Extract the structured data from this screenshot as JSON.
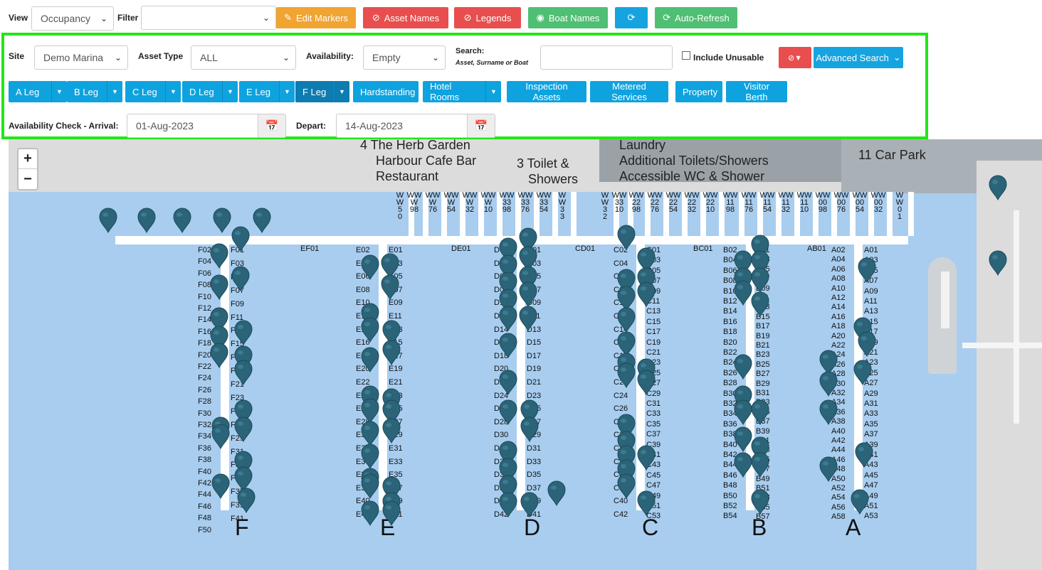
{
  "toolbar": {
    "view_label": "View",
    "view_value": "Occupancy",
    "filter_label": "Filter",
    "filter_value": "",
    "edit_markers": "Edit Markers",
    "asset_names": "Asset Names",
    "legends": "Legends",
    "boat_names": "Boat Names",
    "auto_refresh": "Auto-Refresh"
  },
  "search_panel": {
    "site_label": "Site",
    "site_value": "Demo Marina",
    "asset_type_label": "Asset Type",
    "asset_type_value": "ALL",
    "availability_label": "Availability:",
    "availability_value": "Empty",
    "search_label": "Search:",
    "search_sub": "Asset, Surname or Boat",
    "search_value": "",
    "include_unusable": "Include Unusable",
    "advanced_search": "Advanced Search",
    "legs": [
      {
        "label": "A Leg",
        "dd": true
      },
      {
        "label": "B Leg",
        "dd": true
      },
      {
        "label": "C Leg",
        "dd": true
      },
      {
        "label": "D Leg",
        "dd": true
      },
      {
        "label": "E Leg",
        "dd": true
      },
      {
        "label": "F Leg",
        "dd": true
      },
      {
        "label": "Hardstanding",
        "dd": false
      },
      {
        "label": "Hotel Rooms",
        "dd": true
      },
      {
        "label": "Inspection Assets",
        "dd": false
      },
      {
        "label": "Metered Services",
        "dd": false
      },
      {
        "label": "Property",
        "dd": false
      },
      {
        "label": "Visitor Berth",
        "dd": false
      }
    ],
    "arrival_label": "Availability Check - Arrival:",
    "arrival_value": "01-Aug-2023",
    "depart_label": "Depart:",
    "depart_value": "14-Aug-2023"
  },
  "map": {
    "zoom_in": "+",
    "zoom_out": "−",
    "places": [
      "4  The Herb Garden",
      "Harbour Cafe Bar",
      "Restaurant",
      "3 Toilet &",
      "Showers",
      "Laundry",
      "Additional Toilets/Showers",
      "Accessible WC & Shower",
      "11 Car Park"
    ],
    "leg_letters": [
      "F",
      "E",
      "D",
      "C",
      "B",
      "A"
    ],
    "cross_labels": [
      "EF01",
      "DE01",
      "CD01",
      "BC01",
      "AB01"
    ],
    "ww_labels": [
      "W\nW\n5\n0",
      "WW\nW\n98",
      "WW\nW\n76",
      "WW\nW\n54",
      "WW\nW\n32",
      "WW\nW\n10",
      "WW\n33\n98",
      "WW\n33\n76",
      "WW\n33\n54",
      "W\nW\n3\n3",
      "W\nW\n3\n2",
      "WW\n33\n10",
      "WW\n22\n98",
      "WW\n22\n76",
      "WW\n22\n54",
      "WW\n22\n32",
      "WW\n22\n10",
      "WW\n11\n98",
      "WW\n11\n76",
      "WW\n11\n54",
      "WW\n11\n32",
      "WW\n11\n10",
      "WW\n00\n98",
      "WW\n00\n76",
      "WW\n00\n54",
      "WW\n00\n32",
      "W\nW\n0\n1"
    ],
    "berths": {
      "F_left": [
        "F02",
        "F04",
        "F06",
        "F08",
        "F10",
        "F12",
        "F14",
        "F16",
        "F18",
        "F20",
        "F22",
        "F24",
        "F26",
        "F28",
        "F30",
        "F32",
        "F34",
        "F36",
        "F38",
        "F40",
        "F42",
        "F44",
        "F46",
        "F48",
        "F50"
      ],
      "F_right": [
        "F01",
        "F03",
        "F05",
        "F07",
        "F09",
        "F11",
        "F13",
        "F15",
        "F17",
        "F19",
        "F21",
        "F23",
        "F25",
        "F27",
        "F29",
        "F31",
        "F33",
        "F35",
        "F37",
        "F39",
        "F41"
      ],
      "E_left": [
        "E02",
        "E04",
        "E06",
        "E08",
        "E10",
        "E12",
        "E14",
        "E16",
        "E18",
        "E20",
        "E22",
        "E24",
        "E26",
        "E28",
        "E30",
        "E32",
        "E34",
        "E36",
        "E38",
        "E40",
        "E42"
      ],
      "E_right": [
        "E01",
        "E03",
        "E05",
        "E07",
        "E09",
        "E11",
        "E13",
        "E15",
        "E17",
        "E19",
        "E21",
        "E23",
        "E25",
        "E27",
        "E29",
        "E31",
        "E33",
        "E35",
        "E37",
        "E39",
        "E41"
      ],
      "D_left": [
        "D02",
        "D04",
        "D06",
        "D08",
        "D10",
        "D12",
        "D14",
        "D16",
        "D18",
        "D20",
        "D22",
        "D24",
        "D26",
        "D28",
        "D30",
        "D32",
        "D34",
        "D36",
        "D38",
        "D40",
        "D42"
      ],
      "D_right": [
        "D01",
        "D03",
        "D05",
        "D07",
        "D09",
        "D11",
        "D13",
        "D15",
        "D17",
        "D19",
        "D21",
        "D23",
        "D25",
        "D27",
        "D29",
        "D31",
        "D33",
        "D35",
        "D37",
        "D39",
        "D41"
      ],
      "C_left": [
        "C02",
        "C04",
        "C06",
        "C08",
        "C10",
        "C12",
        "C14",
        "C16",
        "C18",
        "C20",
        "C22",
        "C24",
        "C26",
        "C28",
        "C30",
        "C32",
        "C34",
        "C36",
        "C38",
        "C40",
        "C42"
      ],
      "C_right": [
        "C01",
        "C03",
        "C05",
        "C07",
        "C09",
        "C11",
        "C13",
        "C15",
        "C17",
        "C19",
        "C21",
        "C23",
        "C25",
        "C27",
        "C29",
        "C31",
        "C33",
        "C35",
        "C37",
        "C39",
        "C41",
        "C43",
        "C45",
        "C47",
        "C49",
        "C51",
        "C53"
      ],
      "B_left": [
        "B02",
        "B04",
        "B06",
        "B08",
        "B10",
        "B12",
        "B14",
        "B16",
        "B18",
        "B20",
        "B22",
        "B24",
        "B26",
        "B28",
        "B30",
        "B32",
        "B34",
        "B36",
        "B38",
        "B40",
        "B42",
        "B44",
        "B46",
        "B48",
        "B50",
        "B52",
        "B54"
      ],
      "B_right": [
        "B01",
        "B03",
        "B05",
        "B07",
        "B09",
        "B11",
        "B13",
        "B15",
        "B17",
        "B19",
        "B21",
        "B23",
        "B25",
        "B27",
        "B29",
        "B31",
        "B33",
        "B35",
        "B37",
        "B39",
        "B41",
        "B43",
        "B45",
        "B47",
        "B49",
        "B51",
        "B53",
        "B55",
        "B57"
      ],
      "A_left": [
        "A02",
        "A04",
        "A06",
        "A08",
        "A10",
        "A12",
        "A14",
        "A16",
        "A18",
        "A20",
        "A22",
        "A24",
        "A26",
        "A28",
        "A30",
        "A32",
        "A34",
        "A36",
        "A38",
        "A40",
        "A42",
        "A44",
        "A46",
        "A48",
        "A50",
        "A52",
        "A54",
        "A56",
        "A58"
      ],
      "A_right": [
        "A01",
        "A03",
        "A05",
        "A07",
        "A09",
        "A11",
        "A13",
        "A15",
        "A17",
        "A19",
        "A21",
        "A23",
        "A25",
        "A27",
        "A29",
        "A31",
        "A33",
        "A35",
        "A37",
        "A39",
        "A41",
        "A43",
        "A45",
        "A47",
        "A49",
        "A51",
        "A53"
      ]
    },
    "marker_color": "#2b6478"
  }
}
